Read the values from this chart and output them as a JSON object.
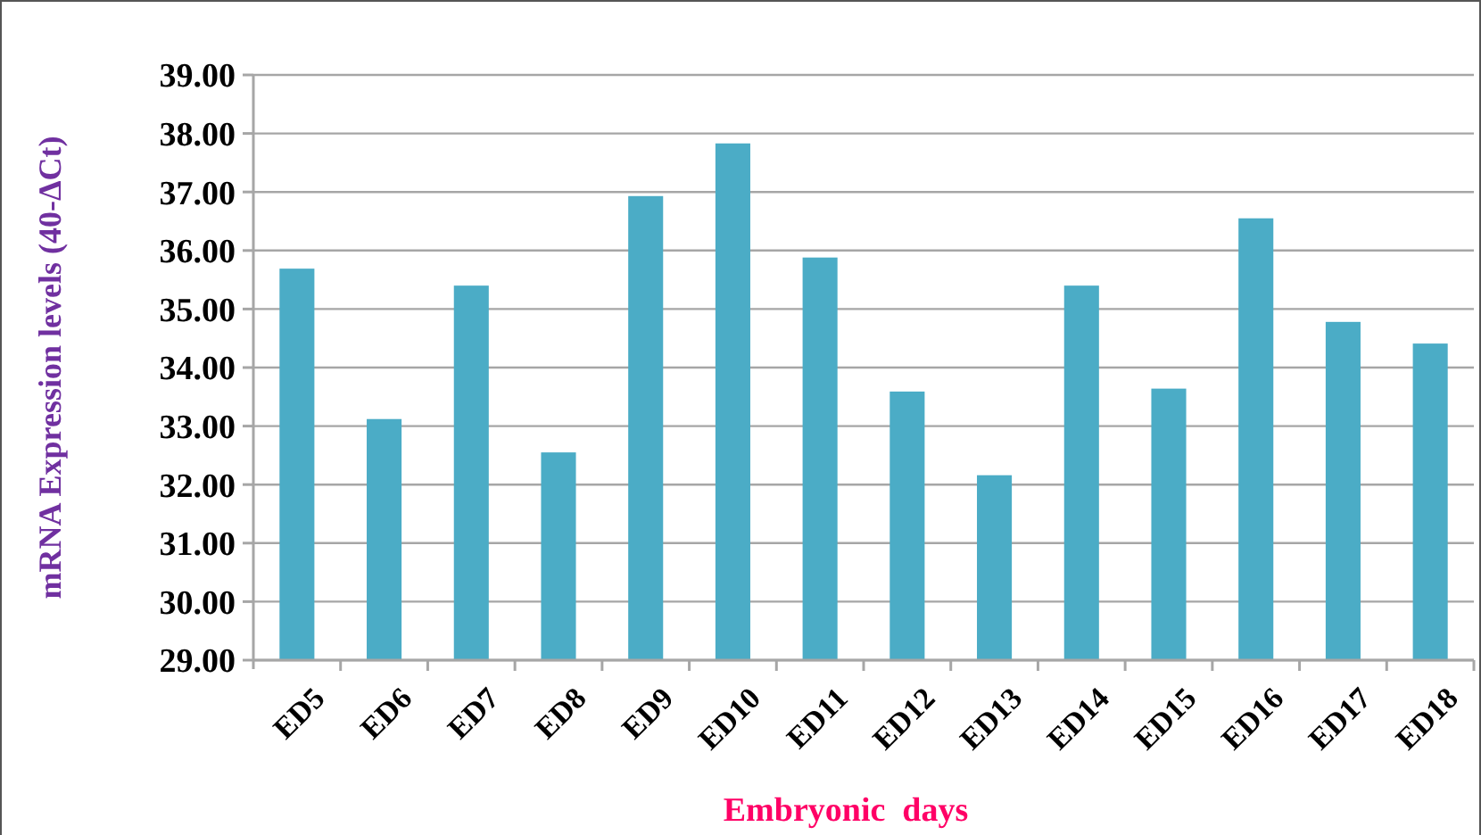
{
  "chart_data": {
    "type": "bar",
    "xlabel": "Embryonic  days",
    "ylabel": "mRNA Expression  levels (40-ΔCt)",
    "categories": [
      "ED5",
      "ED6",
      "ED7",
      "ED8",
      "ED9",
      "ED10",
      "ED11",
      "ED12",
      "ED13",
      "ED14",
      "ED15",
      "ED16",
      "ED17",
      "ED18"
    ],
    "values": [
      35.69,
      33.12,
      35.4,
      32.55,
      36.93,
      37.83,
      35.88,
      33.59,
      32.16,
      35.4,
      33.64,
      36.55,
      34.78,
      34.41
    ],
    "color": "#4bacc6",
    "ylim": [
      29,
      39
    ],
    "yticks": [
      {
        "value": 29,
        "label": "29.00"
      },
      {
        "value": 30,
        "label": "30.00"
      },
      {
        "value": 31,
        "label": "31.00"
      },
      {
        "value": 32,
        "label": "32.00"
      },
      {
        "value": 33,
        "label": "33.00"
      },
      {
        "value": 34,
        "label": "34.00"
      },
      {
        "value": 35,
        "label": "35.00"
      },
      {
        "value": 36,
        "label": "36.00"
      },
      {
        "value": 37,
        "label": "37.00"
      },
      {
        "value": 38,
        "label": "38.00"
      },
      {
        "value": 39,
        "label": "39.00"
      }
    ],
    "grid": "y"
  }
}
